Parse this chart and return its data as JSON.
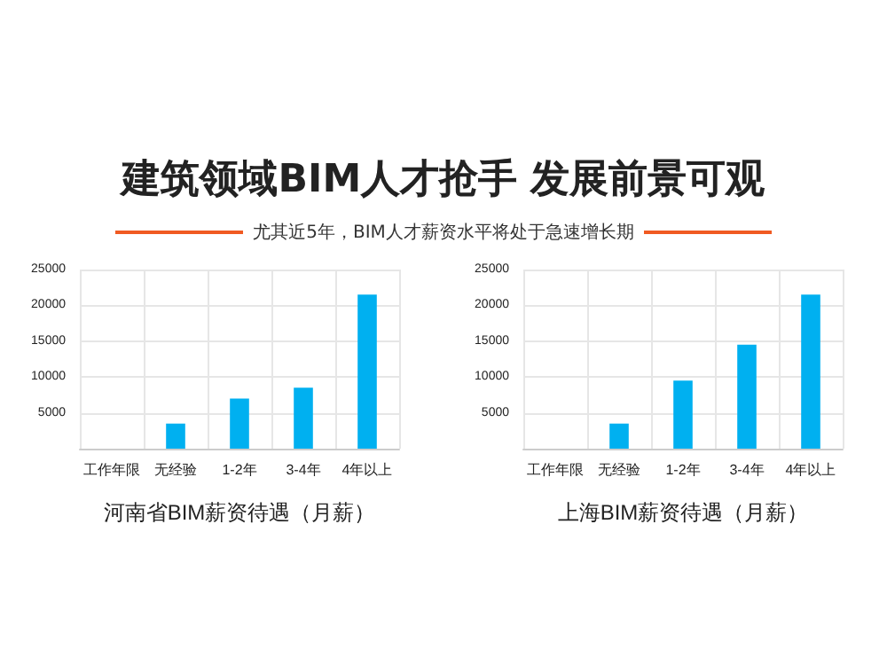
{
  "chart_data": [
    {
      "type": "bar",
      "title": "建筑领域BIM人才抢手 发展前景可观",
      "subtitle": "尤其近5年，BIM人才薪资水平将处于急速增长期",
      "xlabel": "河南省BIM薪资待遇（月薪）",
      "categories": [
        "工作年限",
        "无经验",
        "1-2年",
        "3-4年",
        "4年以上"
      ],
      "values": [
        null,
        3500,
        7000,
        8500,
        21500
      ],
      "color": "#00b0f0",
      "ylim": [
        0,
        25000
      ],
      "yticks": [
        5000,
        10000,
        15000,
        20000,
        25000
      ],
      "grid": true
    },
    {
      "type": "bar",
      "xlabel": "上海BIM薪资待遇（月薪）",
      "categories": [
        "工作年限",
        "无经验",
        "1-2年",
        "3-4年",
        "4年以上"
      ],
      "values": [
        null,
        3500,
        9500,
        14500,
        21500
      ],
      "color": "#00b0f0",
      "ylim": [
        0,
        25000
      ],
      "yticks": [
        5000,
        10000,
        15000,
        20000,
        25000
      ],
      "grid": true
    }
  ]
}
